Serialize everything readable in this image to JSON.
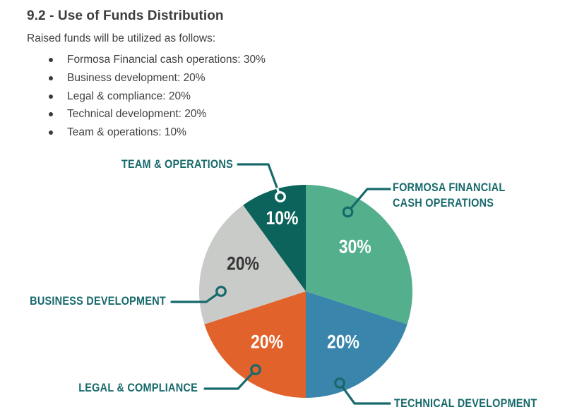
{
  "document": {
    "heading": "9.2 - Use of Funds Distribution",
    "intro": "Raised funds will be utilized as follows:",
    "bullets": [
      "Formosa Financial cash operations: 30%",
      "Business development: 20%",
      "Legal & compliance: 20%",
      "Technical development: 20%",
      "Team & operations: 10%"
    ]
  },
  "chart_data": {
    "type": "pie",
    "title": "Use of Funds Distribution",
    "start_angle_deg": 0,
    "direction": "clockwise",
    "legend_position": "callouts-with-leader-lines",
    "slices": [
      {
        "label": "Formosa Financial cash operations",
        "value": 30,
        "pct_label": "30%",
        "callout_lines": [
          "FORMOSA FINANCIAL",
          "CASH OPERATIONS"
        ],
        "color": "#54B08C",
        "pct_label_color": "#FFFFFF",
        "dot_color": "#17696B"
      },
      {
        "label": "Technical development",
        "value": 20,
        "pct_label": "20%",
        "callout_lines": [
          "TECHNICAL DEVELOPMENT"
        ],
        "color": "#3A85AB",
        "pct_label_color": "#FFFFFF",
        "dot_color": "#17696B"
      },
      {
        "label": "Legal & compliance",
        "value": 20,
        "pct_label": "20%",
        "callout_lines": [
          "LEGAL & COMPLIANCE"
        ],
        "color": "#E2622B",
        "pct_label_color": "#FFFFFF",
        "dot_color": "#17696B"
      },
      {
        "label": "Business development",
        "value": 20,
        "pct_label": "20%",
        "callout_lines": [
          "BUSINESS DEVELOPMENT"
        ],
        "color": "#C9CBC9",
        "pct_label_color": "#363636",
        "dot_color": "#17696B"
      },
      {
        "label": "Team & operations",
        "value": 10,
        "pct_label": "10%",
        "callout_lines": [
          "TEAM & OPERATIONS"
        ],
        "color": "#0B635B",
        "pct_label_color": "#FFFFFF",
        "dot_color": "#FFFFFF"
      }
    ],
    "callout_text_color": "#17696B",
    "leader_line_color": "#17696B"
  }
}
